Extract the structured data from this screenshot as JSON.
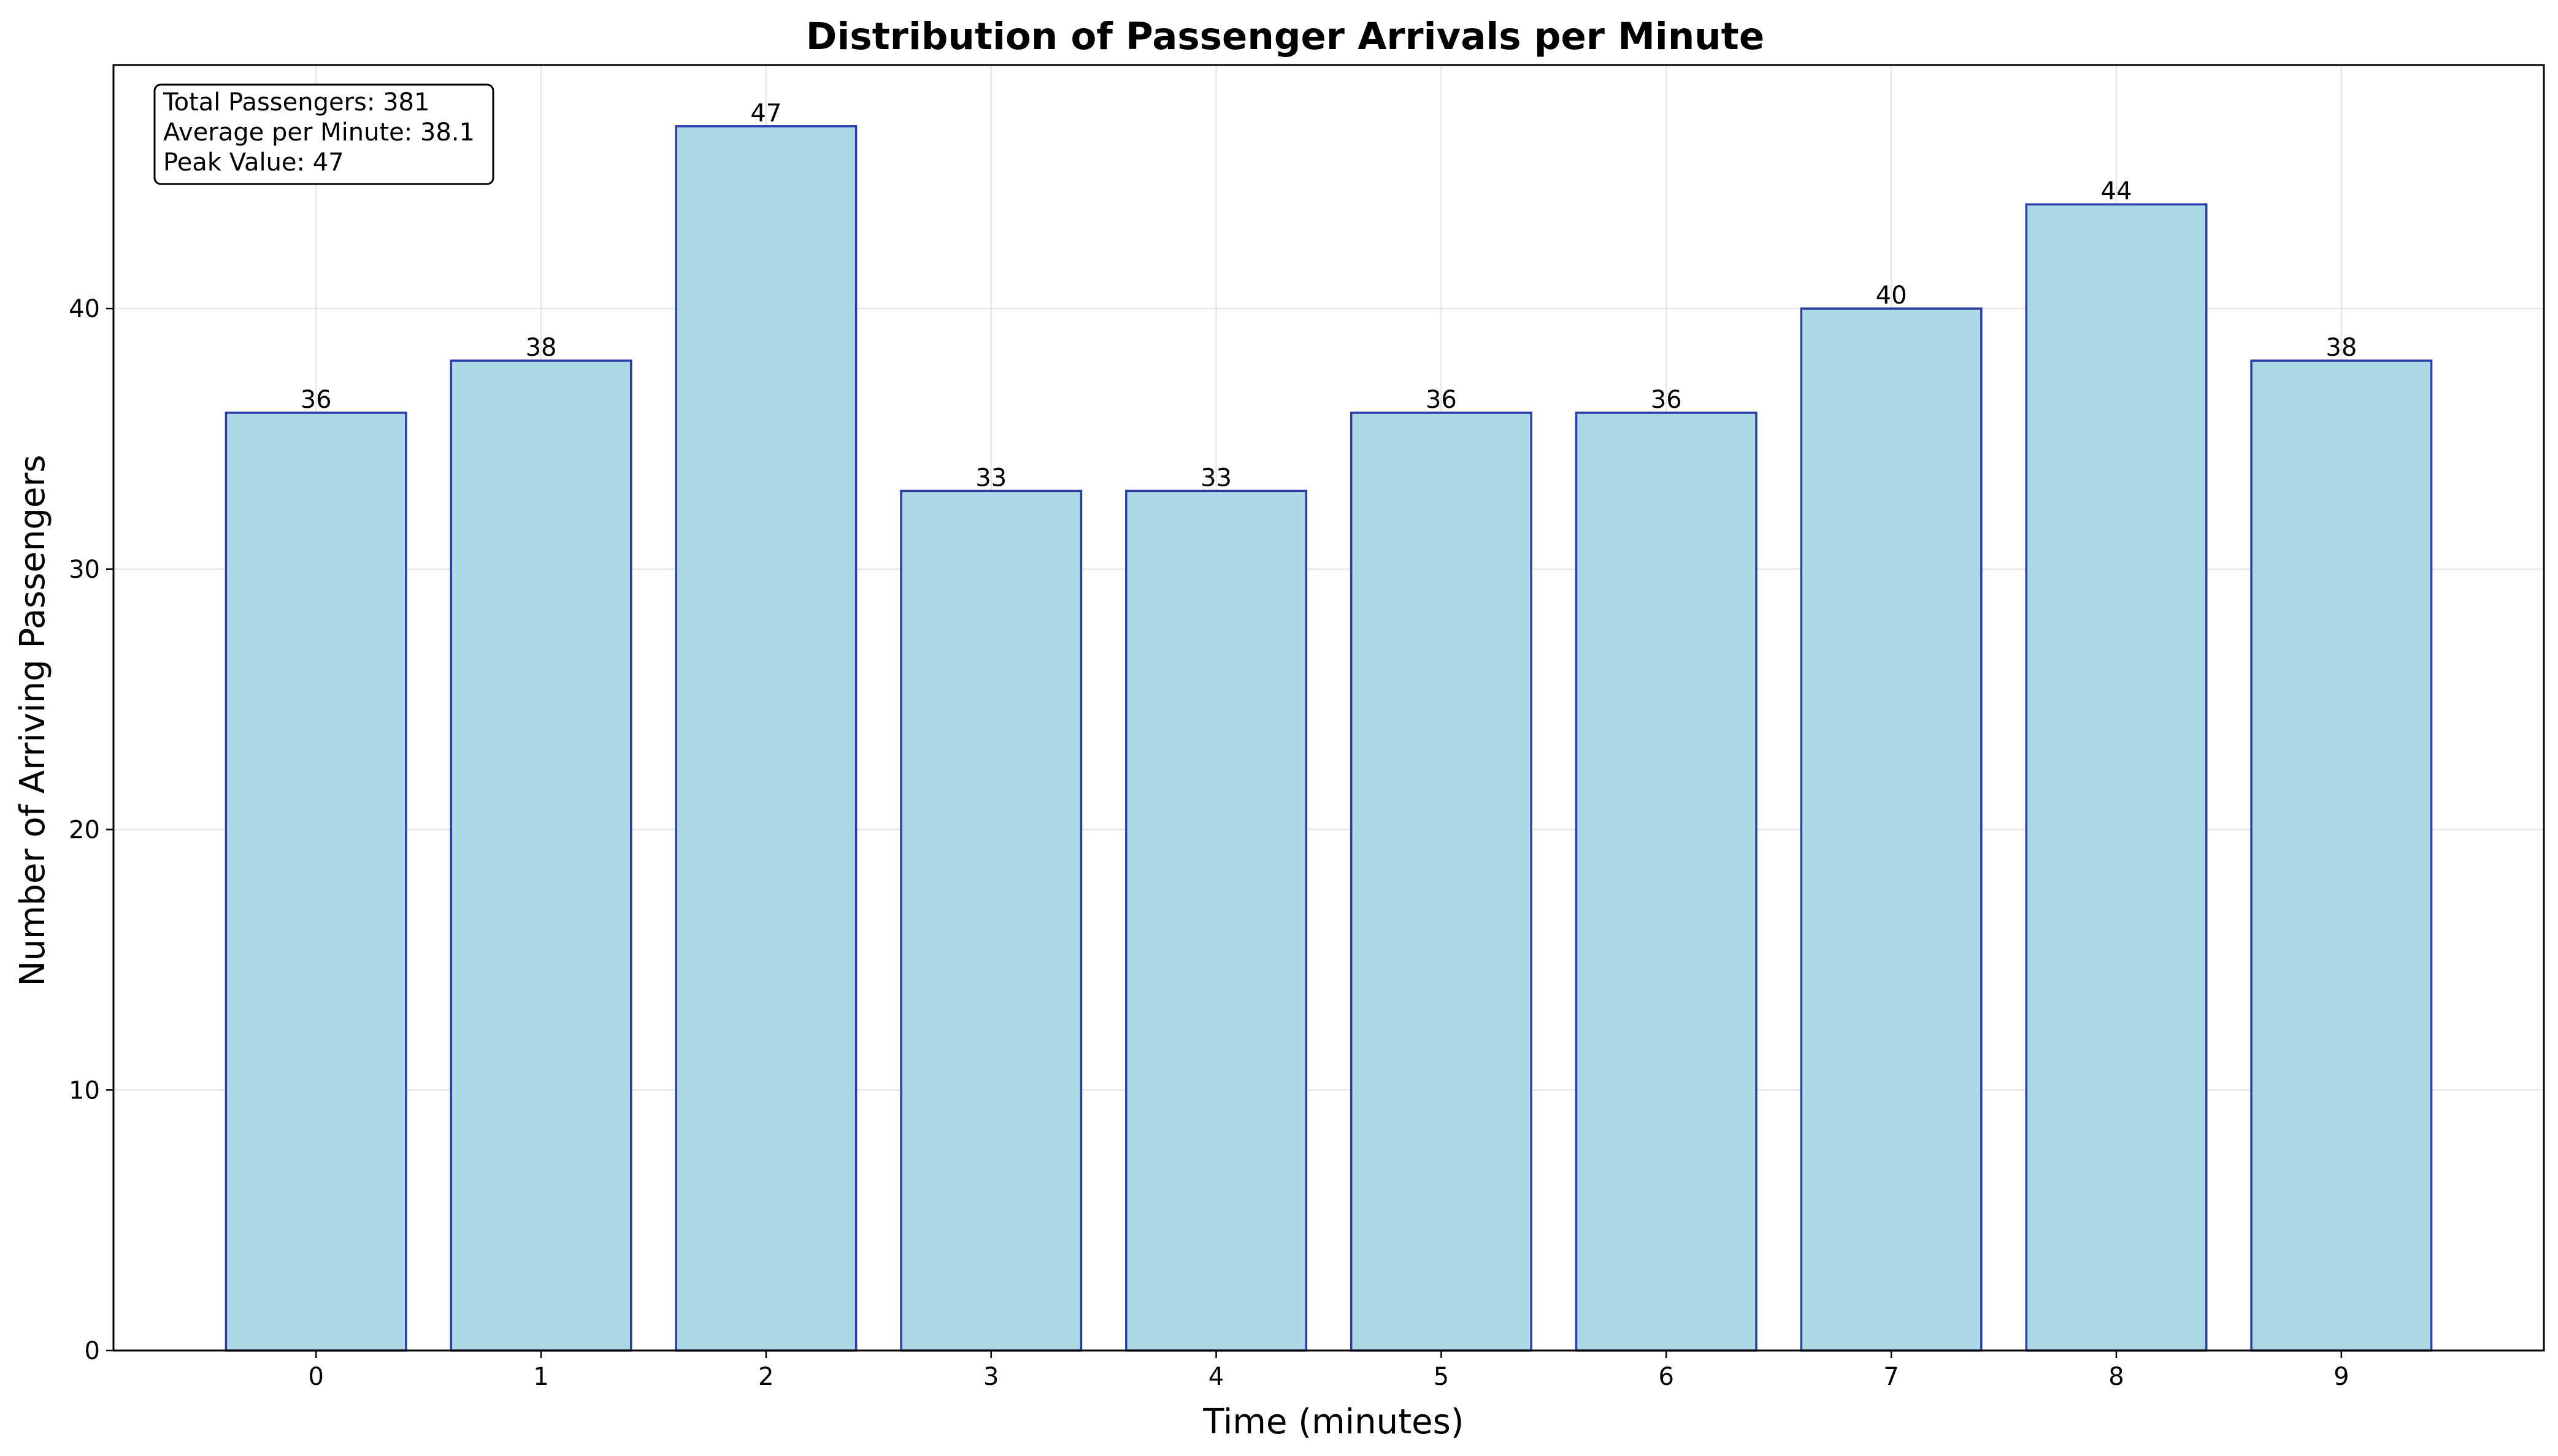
{
  "chart_data": {
    "type": "bar",
    "title": "Distribution of Passenger Arrivals per Minute",
    "xlabel": "Time (minutes)",
    "ylabel": "Number of Arriving Passengers",
    "categories": [
      "0",
      "1",
      "2",
      "3",
      "4",
      "5",
      "6",
      "7",
      "8",
      "9"
    ],
    "values": [
      36,
      38,
      47,
      33,
      33,
      36,
      36,
      40,
      44,
      38
    ],
    "xlim": [
      -0.9,
      9.9
    ],
    "ylim": [
      0,
      49.35
    ],
    "yticks": [
      0,
      10,
      20,
      30,
      40
    ],
    "grid": true,
    "bar_color": "#ADD8E6",
    "bar_edge_color": "#2B3DA8",
    "stats_box": {
      "position": "top-left",
      "lines": [
        "Total Passengers: 381",
        "Average per Minute: 38.1",
        "Peak Value: 47"
      ]
    }
  }
}
